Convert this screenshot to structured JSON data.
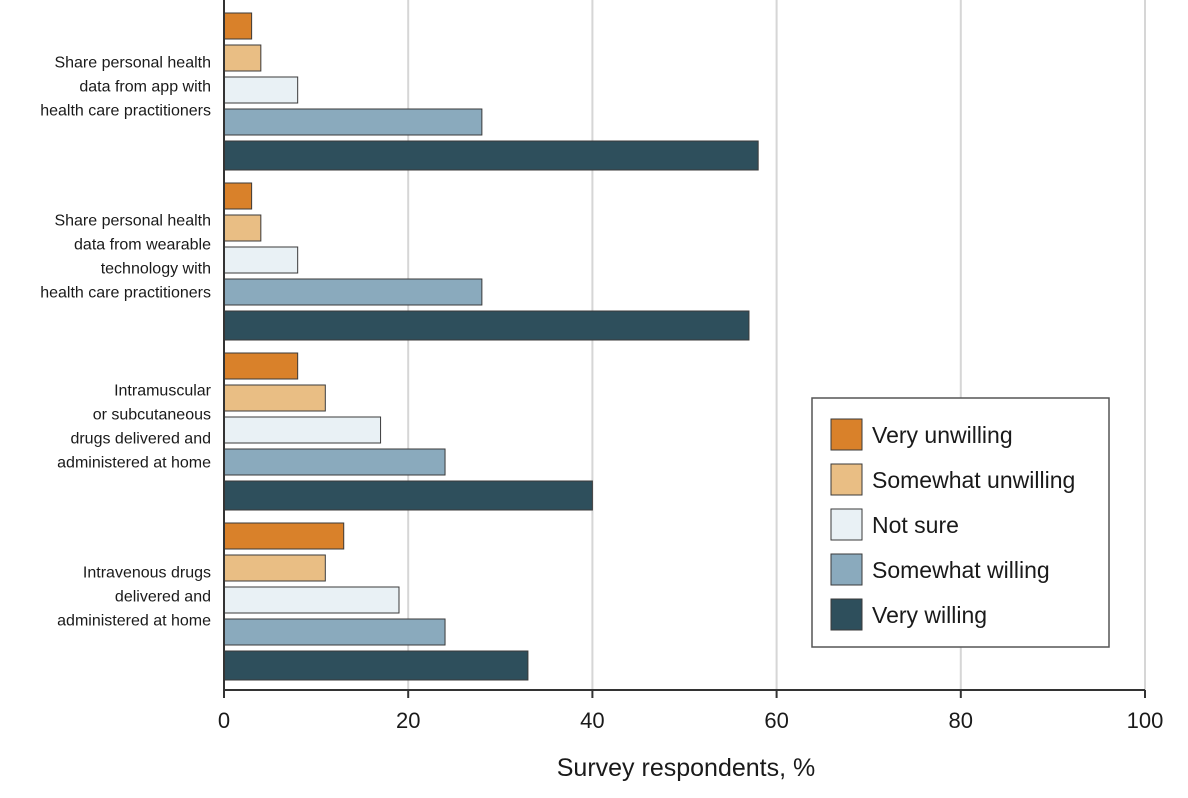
{
  "chart_data": {
    "type": "bar",
    "orientation": "horizontal",
    "categories": [
      [
        "Share personal health",
        "data from app with",
        "health care practitioners"
      ],
      [
        "Share personal health",
        "data from wearable",
        "technology with",
        "health care practitioners"
      ],
      [
        "Intramuscular",
        "or subcutaneous",
        "drugs delivered and",
        "administered at home"
      ],
      [
        "Intravenous drugs",
        "delivered and",
        "administered at home"
      ]
    ],
    "series": [
      {
        "name": "Very unwilling",
        "color": "#d9812a",
        "values": [
          3,
          3,
          8,
          13
        ]
      },
      {
        "name": "Somewhat unwilling",
        "color": "#e9be84",
        "values": [
          4,
          4,
          11,
          11
        ]
      },
      {
        "name": "Not sure",
        "color": "#e9f1f5",
        "values": [
          8,
          8,
          17,
          19
        ]
      },
      {
        "name": "Somewhat willing",
        "color": "#8aaabd",
        "values": [
          28,
          28,
          24,
          24
        ]
      },
      {
        "name": "Very willing",
        "color": "#2e4f5c",
        "values": [
          58,
          57,
          40,
          33
        ]
      }
    ],
    "xlabel": "Survey respondents, %",
    "xlim": [
      0,
      100
    ],
    "xticks": [
      "0",
      "20",
      "40",
      "60",
      "80",
      "100"
    ],
    "grid": "vertical",
    "legend_position": "right"
  }
}
